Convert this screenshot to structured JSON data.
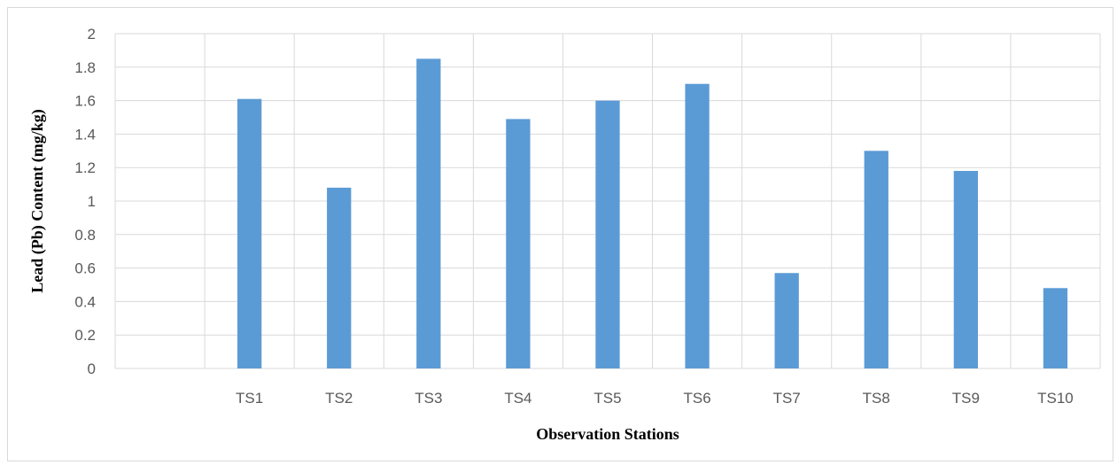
{
  "chart_data": {
    "type": "bar",
    "title": "",
    "xlabel": "Observation Stations",
    "ylabel": "Lead (Pb) Content  (mg/kg)",
    "categories": [
      "",
      "TS1",
      "TS2",
      "TS3",
      "TS4",
      "TS5",
      "TS6",
      "TS7",
      "TS8",
      "TS9",
      "TS10"
    ],
    "values": [
      null,
      1.61,
      1.08,
      1.85,
      1.49,
      1.6,
      1.7,
      0.57,
      1.3,
      1.18,
      0.48
    ],
    "ylim": [
      0,
      2
    ],
    "yticks": [
      "0",
      "0.2",
      "0.4",
      "0.6",
      "0.8",
      "1",
      "1.2",
      "1.4",
      "1.6",
      "1.8",
      "2"
    ],
    "grid": true,
    "legend": "none",
    "colors": {
      "bar": "#5b9bd5",
      "grid": "#d9d9d9",
      "tick_text": "#595959"
    }
  }
}
